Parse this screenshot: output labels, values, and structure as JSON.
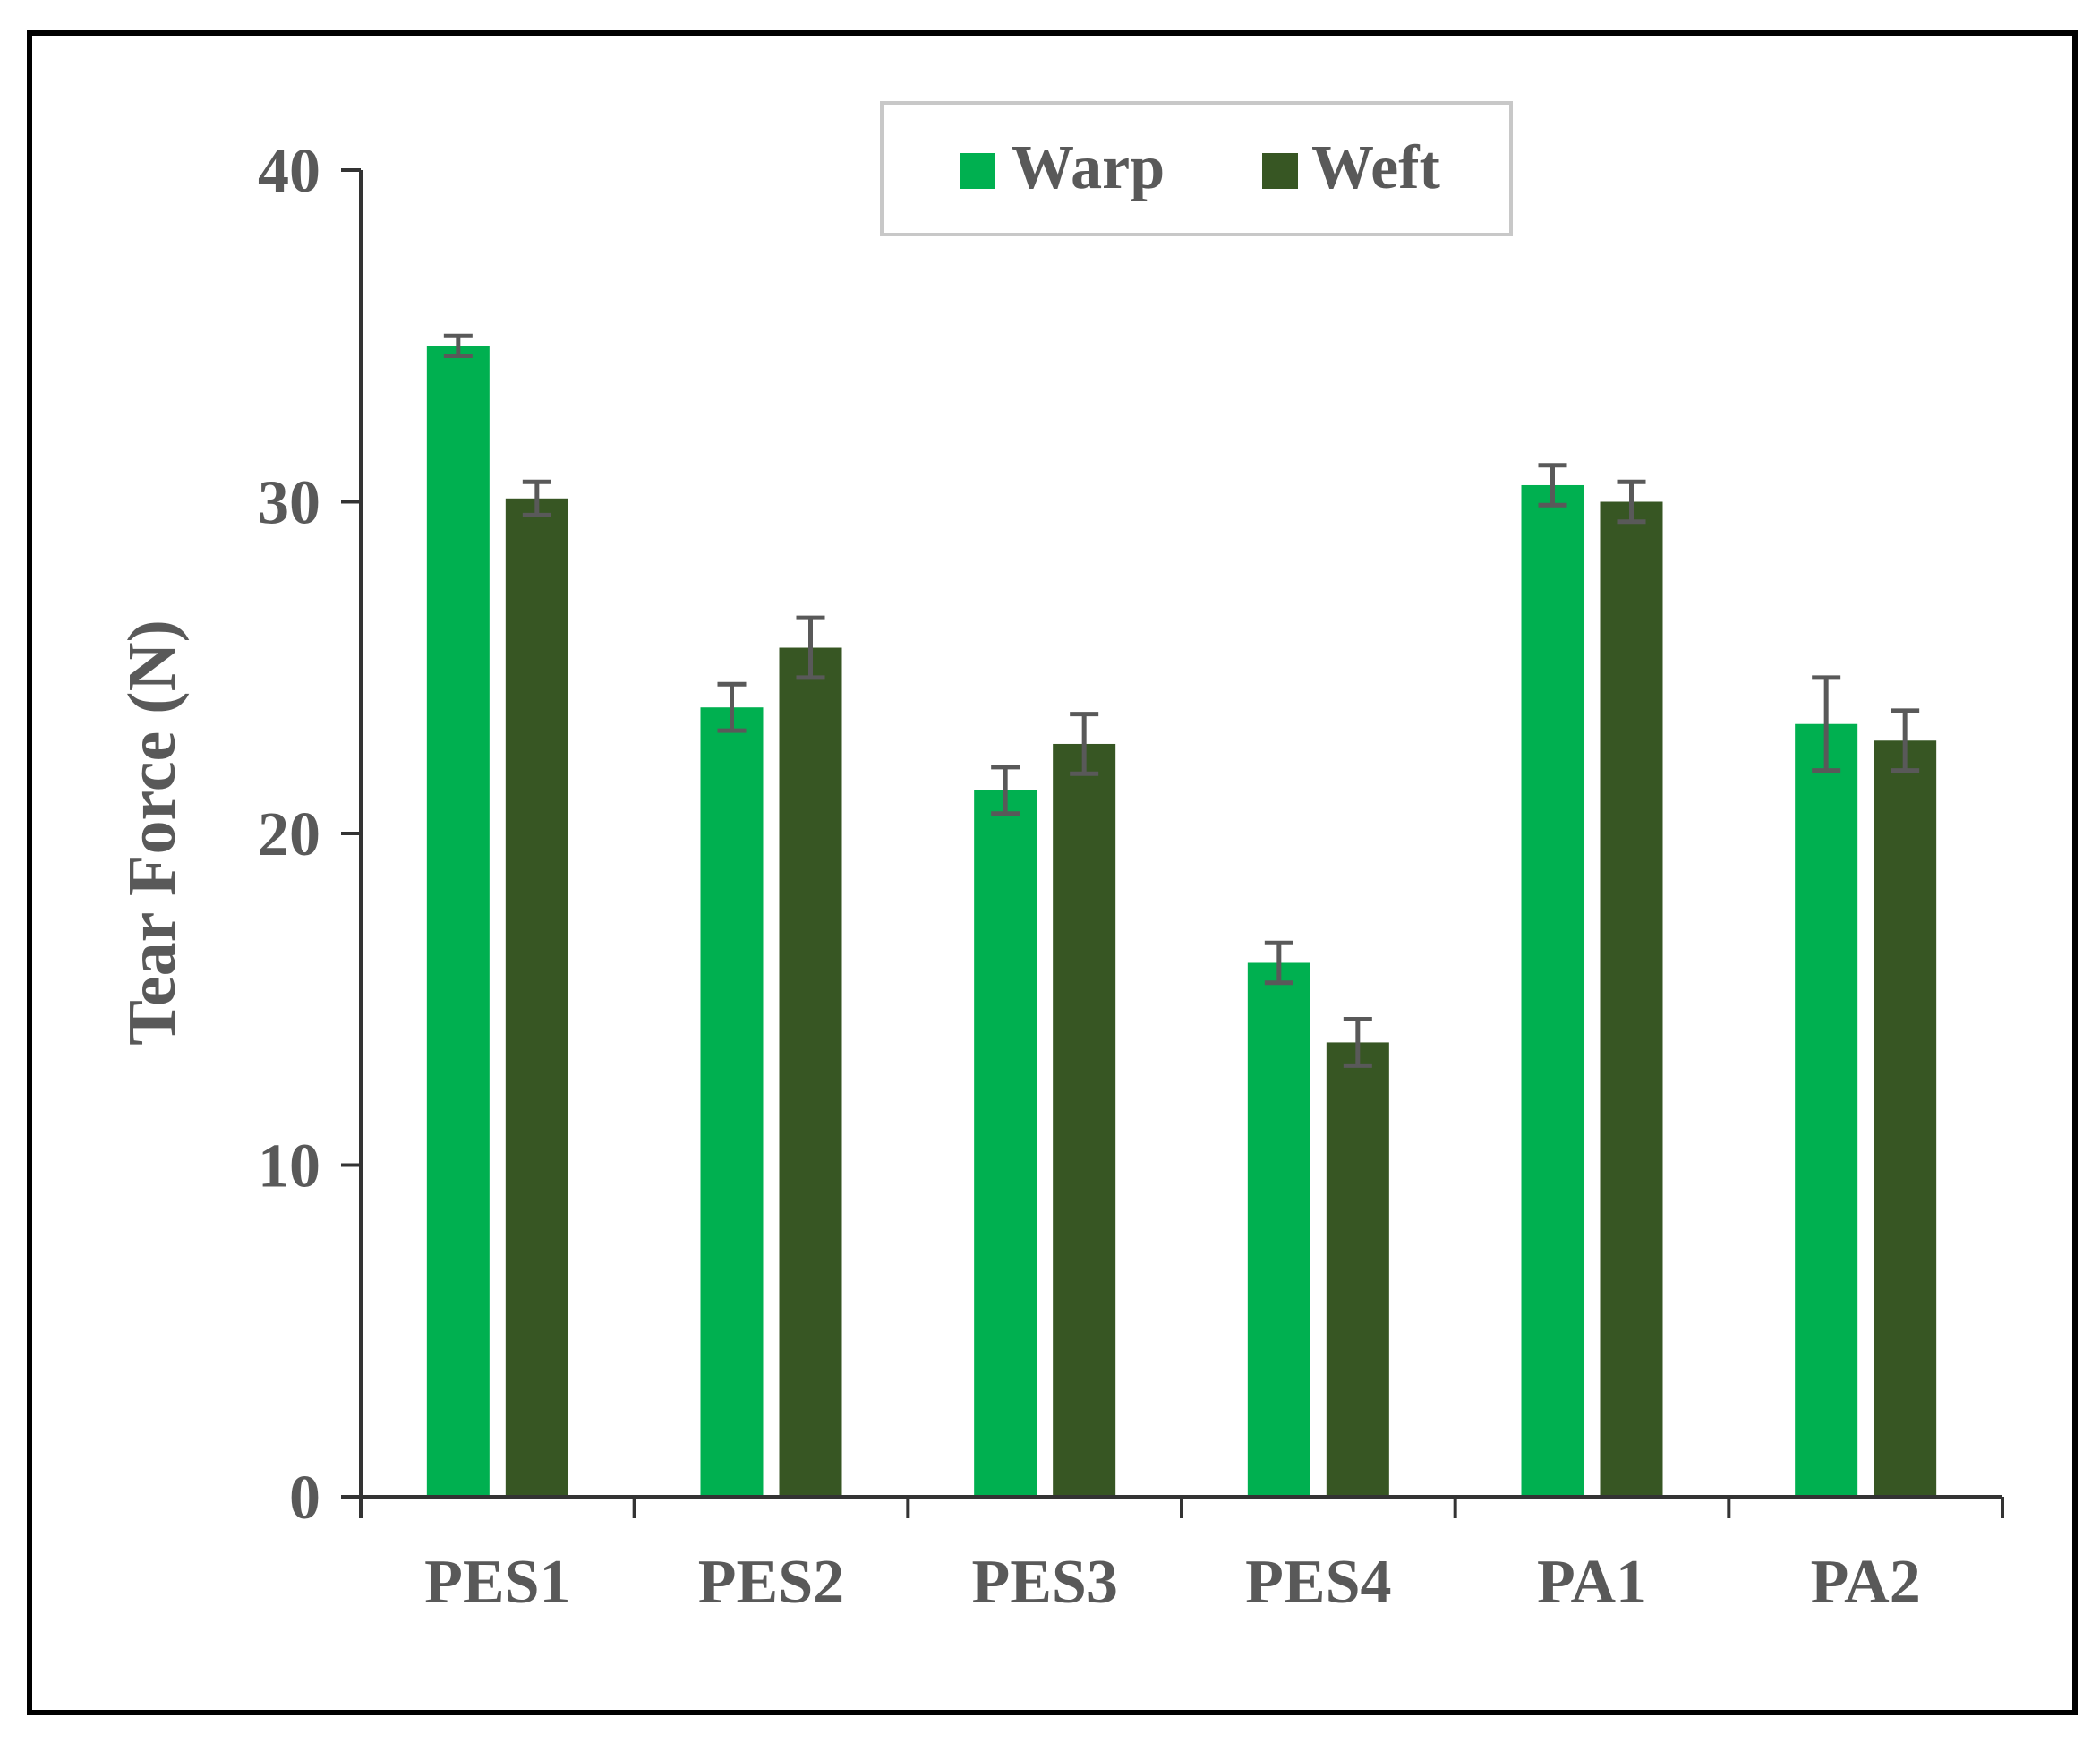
{
  "chart_data": {
    "type": "bar",
    "title": "",
    "xlabel": "",
    "ylabel": "Tear Force (N)",
    "ylim": [
      0,
      40
    ],
    "yticks": [
      0,
      10,
      20,
      30,
      40
    ],
    "grid": false,
    "legend_position": "top-center",
    "categories": [
      "PES1",
      "PES2",
      "PES3",
      "PES4",
      "PA1",
      "PA2"
    ],
    "series": [
      {
        "name": "Warp",
        "color": "#00b050",
        "values": [
          34.7,
          23.8,
          21.3,
          16.1,
          30.5,
          23.3
        ],
        "errors": [
          0.3,
          0.7,
          0.7,
          0.6,
          0.6,
          1.4
        ]
      },
      {
        "name": "Weft",
        "color": "#375623",
        "values": [
          30.1,
          25.6,
          22.7,
          13.7,
          30.0,
          22.8
        ],
        "errors": [
          0.5,
          0.9,
          0.9,
          0.7,
          0.6,
          0.9
        ]
      }
    ]
  }
}
